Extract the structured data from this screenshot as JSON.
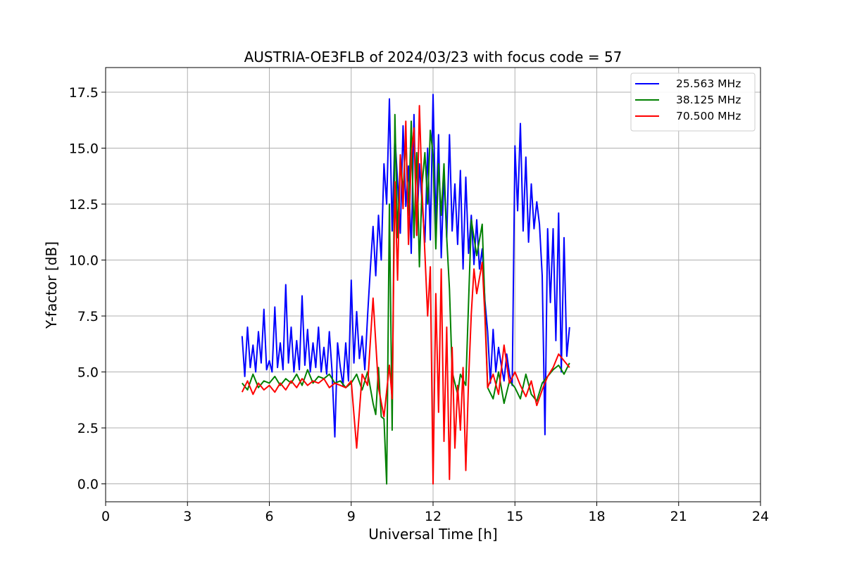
{
  "chart_data": {
    "type": "line",
    "title": "AUSTRIA-OE3FLB of 2024/03/23 with focus code = 57",
    "xlabel": "Universal Time [h]",
    "ylabel": "Y-factor [dB]",
    "xlim": [
      0,
      24
    ],
    "ylim": [
      -0.8,
      18.6
    ],
    "xticks": [
      0,
      3,
      6,
      9,
      12,
      15,
      18,
      21,
      24
    ],
    "xtick_labels": [
      "0",
      "3",
      "6",
      "9",
      "12",
      "15",
      "18",
      "21",
      "24"
    ],
    "yticks": [
      0.0,
      2.5,
      5.0,
      7.5,
      10.0,
      12.5,
      15.0,
      17.5
    ],
    "ytick_labels": [
      "0.0",
      "2.5",
      "5.0",
      "7.5",
      "10.0",
      "12.5",
      "15.0",
      "17.5"
    ],
    "grid": true,
    "legend_position": "top-right",
    "series": [
      {
        "name": "25.563 MHz",
        "color": "#0000ff",
        "x": [
          5.0,
          5.1,
          5.2,
          5.3,
          5.4,
          5.5,
          5.6,
          5.7,
          5.8,
          5.9,
          6.0,
          6.1,
          6.2,
          6.3,
          6.4,
          6.5,
          6.6,
          6.7,
          6.8,
          6.9,
          7.0,
          7.1,
          7.2,
          7.3,
          7.4,
          7.5,
          7.6,
          7.7,
          7.8,
          7.9,
          8.0,
          8.1,
          8.2,
          8.3,
          8.4,
          8.5,
          8.6,
          8.7,
          8.8,
          8.9,
          9.0,
          9.1,
          9.2,
          9.3,
          9.4,
          9.5,
          9.6,
          9.7,
          9.8,
          9.9,
          10.0,
          10.1,
          10.2,
          10.3,
          10.4,
          10.5,
          10.6,
          10.7,
          10.8,
          10.9,
          11.0,
          11.1,
          11.2,
          11.3,
          11.4,
          11.5,
          11.6,
          11.7,
          11.8,
          11.9,
          12.0,
          12.1,
          12.2,
          12.3,
          12.4,
          12.5,
          12.6,
          12.7,
          12.8,
          12.9,
          13.0,
          13.1,
          13.2,
          13.3,
          13.4,
          13.5,
          13.6,
          13.7,
          13.8,
          13.9,
          14.0,
          14.1,
          14.2,
          14.3,
          14.4,
          14.5,
          14.6,
          14.7,
          14.8,
          14.9,
          15.0,
          15.1,
          15.2,
          15.3,
          15.4,
          15.5,
          15.6,
          15.7,
          15.8,
          15.9,
          16.0,
          16.1,
          16.2,
          16.3,
          16.4,
          16.5,
          16.6,
          16.7,
          16.8,
          16.9,
          17.0
        ],
        "y": [
          6.6,
          4.8,
          7.0,
          5.2,
          6.2,
          5.0,
          6.8,
          5.4,
          7.8,
          5.1,
          5.5,
          5.0,
          7.9,
          5.2,
          6.3,
          5.1,
          8.9,
          5.4,
          7.0,
          5.0,
          6.4,
          5.1,
          8.4,
          5.3,
          6.9,
          5.0,
          6.3,
          5.2,
          7.0,
          5.0,
          6.1,
          4.9,
          6.8,
          5.0,
          2.1,
          6.3,
          5.2,
          4.4,
          6.3,
          4.6,
          9.1,
          5.4,
          7.7,
          5.6,
          6.6,
          5.1,
          7.5,
          9.6,
          11.5,
          9.3,
          12.0,
          10.0,
          14.3,
          12.5,
          17.2,
          11.3,
          15.6,
          13.5,
          11.2,
          16.0,
          12.4,
          14.2,
          10.3,
          16.5,
          11.1,
          14.3,
          12.5,
          10.8,
          15.0,
          10.9,
          17.4,
          11.6,
          15.6,
          10.1,
          13.8,
          11.0,
          15.6,
          11.3,
          13.4,
          10.7,
          14.0,
          9.6,
          13.7,
          10.3,
          12.0,
          9.8,
          11.8,
          9.6,
          10.5,
          8.2,
          6.8,
          4.5,
          6.9,
          5.0,
          6.1,
          5.3,
          4.6,
          5.8,
          4.9,
          4.4,
          15.1,
          12.2,
          16.1,
          11.3,
          14.6,
          10.8,
          13.4,
          11.4,
          12.6,
          11.6,
          9.3,
          2.2,
          11.4,
          8.1,
          11.4,
          6.4,
          12.1,
          5.0,
          11.0,
          5.7,
          7.0
        ]
      },
      {
        "name": "38.125 MHz",
        "color": "#008000",
        "x": [
          5.0,
          5.2,
          5.4,
          5.6,
          5.8,
          6.0,
          6.2,
          6.4,
          6.6,
          6.8,
          7.0,
          7.2,
          7.4,
          7.6,
          7.8,
          8.0,
          8.2,
          8.4,
          8.6,
          8.8,
          9.0,
          9.2,
          9.4,
          9.6,
          9.8,
          9.9,
          10.0,
          10.1,
          10.2,
          10.3,
          10.4,
          10.5,
          10.6,
          10.7,
          10.8,
          10.9,
          11.0,
          11.1,
          11.2,
          11.3,
          11.4,
          11.5,
          11.6,
          11.7,
          11.8,
          11.9,
          12.0,
          12.1,
          12.2,
          12.3,
          12.4,
          12.5,
          12.6,
          12.7,
          12.8,
          12.9,
          13.0,
          13.2,
          13.4,
          13.6,
          13.8,
          14.0,
          14.2,
          14.4,
          14.6,
          14.8,
          15.0,
          15.2,
          15.4,
          15.6,
          15.8,
          16.0,
          16.2,
          16.4,
          16.6,
          16.8,
          17.0
        ],
        "y": [
          4.5,
          4.2,
          4.9,
          4.3,
          4.6,
          4.5,
          4.8,
          4.4,
          4.7,
          4.5,
          4.9,
          4.4,
          5.1,
          4.5,
          4.8,
          4.7,
          4.9,
          4.5,
          4.6,
          4.3,
          4.5,
          4.9,
          4.2,
          5.0,
          3.6,
          3.1,
          5.2,
          3.0,
          2.9,
          0.0,
          12.5,
          2.4,
          16.5,
          11.0,
          14.6,
          13.0,
          15.5,
          12.0,
          16.2,
          11.0,
          14.8,
          9.7,
          13.4,
          14.8,
          12.5,
          15.8,
          14.7,
          10.5,
          14.3,
          12.0,
          14.3,
          11.0,
          8.7,
          5.0,
          4.5,
          4.0,
          4.9,
          4.4,
          11.8,
          10.2,
          11.6,
          4.3,
          3.8,
          5.0,
          3.6,
          4.6,
          4.3,
          3.8,
          4.9,
          4.0,
          3.7,
          4.5,
          4.8,
          5.1,
          5.3,
          4.9,
          5.4
        ]
      },
      {
        "name": "70.500 MHz",
        "color": "#ff0000",
        "x": [
          5.0,
          5.2,
          5.4,
          5.6,
          5.8,
          6.0,
          6.2,
          6.4,
          6.6,
          6.8,
          7.0,
          7.2,
          7.4,
          7.6,
          7.8,
          8.0,
          8.2,
          8.4,
          8.6,
          8.8,
          9.0,
          9.2,
          9.4,
          9.6,
          9.8,
          10.0,
          10.2,
          10.4,
          10.5,
          10.6,
          10.7,
          10.8,
          10.9,
          11.0,
          11.1,
          11.2,
          11.3,
          11.4,
          11.5,
          11.6,
          11.7,
          11.8,
          11.9,
          12.0,
          12.1,
          12.2,
          12.3,
          12.4,
          12.5,
          12.6,
          12.7,
          12.8,
          12.9,
          13.0,
          13.1,
          13.2,
          13.3,
          13.4,
          13.5,
          13.6,
          13.7,
          13.8,
          13.9,
          14.0,
          14.2,
          14.4,
          14.6,
          14.8,
          15.0,
          15.2,
          15.4,
          15.6,
          15.8,
          16.0,
          16.2,
          16.4,
          16.6,
          16.8,
          17.0
        ],
        "y": [
          4.1,
          4.6,
          4.0,
          4.5,
          4.2,
          4.4,
          4.1,
          4.5,
          4.2,
          4.6,
          4.3,
          4.7,
          4.4,
          4.6,
          4.5,
          4.7,
          4.3,
          4.5,
          4.4,
          4.3,
          4.6,
          1.6,
          4.9,
          4.4,
          8.3,
          4.3,
          3.0,
          5.3,
          3.8,
          13.5,
          9.1,
          14.7,
          12.3,
          16.2,
          10.7,
          14.6,
          15.9,
          11.1,
          16.9,
          13.0,
          10.3,
          7.5,
          9.7,
          0.0,
          8.5,
          3.2,
          9.6,
          1.9,
          7.0,
          0.2,
          6.1,
          1.6,
          4.4,
          2.4,
          5.2,
          0.6,
          4.6,
          7.6,
          9.6,
          8.5,
          9.2,
          9.9,
          7.5,
          4.3,
          4.9,
          4.0,
          6.2,
          4.5,
          5.0,
          4.4,
          3.9,
          4.6,
          3.5,
          4.2,
          4.8,
          5.2,
          5.8,
          5.5,
          5.2
        ]
      }
    ]
  }
}
